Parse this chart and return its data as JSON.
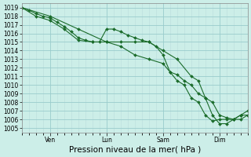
{
  "background_color": "#cceee8",
  "grid_color_major": "#99cccc",
  "grid_color_minor": "#bbdddd",
  "line_color": "#1a6b2a",
  "marker_color": "#1a6b2a",
  "ylabel_ticks": [
    1005,
    1006,
    1007,
    1008,
    1009,
    1010,
    1011,
    1012,
    1013,
    1014,
    1015,
    1016,
    1017,
    1018,
    1019
  ],
  "ylim": [
    1004.5,
    1019.5
  ],
  "xlabel": "Pression niveau de la mer( hPa )",
  "day_labels": [
    "Ven",
    "Lun",
    "Sam",
    "Dim"
  ],
  "day_positions": [
    12,
    36,
    60,
    84
  ],
  "xlim": [
    0,
    96
  ],
  "xtick_minor_step": 3,
  "series1": [
    [
      0,
      1019.0
    ],
    [
      3,
      1018.7
    ],
    [
      6,
      1018.3
    ],
    [
      9,
      1018.0
    ],
    [
      12,
      1017.8
    ],
    [
      15,
      1017.3
    ],
    [
      18,
      1016.8
    ],
    [
      21,
      1016.2
    ],
    [
      24,
      1015.5
    ],
    [
      27,
      1015.2
    ],
    [
      30,
      1015.0
    ],
    [
      33,
      1015.0
    ],
    [
      36,
      1016.5
    ],
    [
      39,
      1016.5
    ],
    [
      42,
      1016.2
    ],
    [
      45,
      1015.8
    ],
    [
      48,
      1015.5
    ],
    [
      51,
      1015.2
    ],
    [
      54,
      1015.0
    ],
    [
      57,
      1014.5
    ],
    [
      60,
      1013.5
    ],
    [
      63,
      1011.5
    ],
    [
      66,
      1011.2
    ],
    [
      69,
      1010.5
    ],
    [
      72,
      1010.0
    ],
    [
      75,
      1009.0
    ],
    [
      78,
      1008.5
    ],
    [
      81,
      1008.0
    ],
    [
      84,
      1006.5
    ],
    [
      87,
      1006.2
    ],
    [
      90,
      1006.0
    ],
    [
      93,
      1006.5
    ],
    [
      96,
      1006.5
    ]
  ],
  "series2": [
    [
      0,
      1019.0
    ],
    [
      6,
      1018.0
    ],
    [
      12,
      1017.5
    ],
    [
      18,
      1016.5
    ],
    [
      24,
      1015.2
    ],
    [
      30,
      1015.0
    ],
    [
      36,
      1015.0
    ],
    [
      42,
      1014.5
    ],
    [
      48,
      1013.5
    ],
    [
      54,
      1013.0
    ],
    [
      60,
      1012.5
    ],
    [
      63,
      1011.5
    ],
    [
      66,
      1010.5
    ],
    [
      69,
      1010.0
    ],
    [
      72,
      1008.5
    ],
    [
      75,
      1008.0
    ],
    [
      78,
      1006.5
    ],
    [
      81,
      1005.8
    ],
    [
      84,
      1006.0
    ],
    [
      87,
      1006.0
    ],
    [
      90,
      1006.0
    ],
    [
      93,
      1006.0
    ],
    [
      96,
      1006.5
    ]
  ],
  "series3": [
    [
      0,
      1019.0
    ],
    [
      12,
      1018.0
    ],
    [
      24,
      1016.5
    ],
    [
      36,
      1015.0
    ],
    [
      42,
      1015.0
    ],
    [
      48,
      1015.0
    ],
    [
      54,
      1015.0
    ],
    [
      60,
      1014.0
    ],
    [
      66,
      1013.0
    ],
    [
      72,
      1011.0
    ],
    [
      75,
      1010.5
    ],
    [
      78,
      1008.5
    ],
    [
      81,
      1006.5
    ],
    [
      84,
      1005.5
    ],
    [
      87,
      1005.5
    ],
    [
      90,
      1006.0
    ],
    [
      93,
      1006.5
    ],
    [
      96,
      1007.0
    ]
  ],
  "tick_fontsize": 5.5,
  "xlabel_fontsize": 7.5
}
